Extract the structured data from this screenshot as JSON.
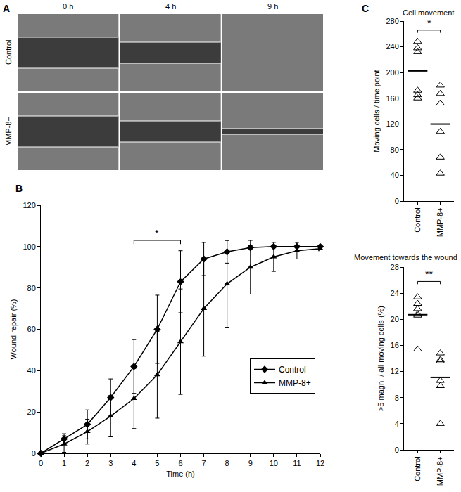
{
  "panel_a": {
    "label": "A",
    "columns": [
      "0 h",
      "4 h",
      "9 h"
    ],
    "rows": [
      "Control",
      "MMP-8+"
    ]
  },
  "chart_data": [
    {
      "label": "B",
      "type": "line",
      "x": [
        0,
        1,
        2,
        3,
        4,
        5,
        6,
        7,
        8,
        9,
        10,
        11,
        12
      ],
      "series": [
        {
          "name": "Control",
          "color": "#000000",
          "marker": "diamond",
          "values": [
            0,
            7,
            14,
            27,
            42,
            60,
            83,
            94,
            97.5,
            99.5,
            100,
            100,
            100
          ],
          "error": [
            0,
            2.5,
            7,
            9,
            13,
            16.5,
            15,
            8,
            5.5,
            1,
            0,
            0,
            0
          ]
        },
        {
          "name": "MMP-8+",
          "color": "#000000",
          "marker": "triangle-up",
          "values": [
            0,
            4.5,
            10.5,
            18,
            26.5,
            38,
            54,
            70,
            82,
            90,
            95,
            98,
            99
          ],
          "error": [
            0,
            4,
            6,
            10,
            14.5,
            21,
            25.5,
            23,
            21,
            13,
            7,
            4,
            1
          ]
        }
      ],
      "x_label": "Time (h)",
      "y_label": "Wound repair (%)",
      "xlim": [
        0,
        12
      ],
      "xticks": [
        0,
        1,
        2,
        3,
        4,
        5,
        6,
        7,
        8,
        9,
        10,
        11,
        12
      ],
      "ylim": [
        0,
        120
      ],
      "yticks": [
        0,
        20,
        40,
        60,
        80,
        100,
        120
      ],
      "legend": "bottom right",
      "significance": [
        {
          "from": 4,
          "to": 6,
          "y": 103,
          "text": "*"
        }
      ]
    },
    {
      "label": "C",
      "type": "scatter",
      "title": "Cell movement",
      "categories": [
        "Control",
        "MMP-8+"
      ],
      "points": [
        [
          248,
          238,
          232,
          172,
          165,
          160
        ],
        [
          180,
          167,
          152,
          108,
          68,
          43
        ]
      ],
      "means": [
        202.5,
        119.7
      ],
      "color": "#000000",
      "marker": "triangle-up-open",
      "y_label": "Moving cells / time point",
      "ylim": [
        0,
        280
      ],
      "yticks": [
        0,
        40,
        80,
        120,
        160,
        200,
        240,
        280
      ],
      "significance": [
        {
          "from": "Control",
          "to": "MMP-8+",
          "y": 266,
          "text": "*"
        }
      ]
    },
    {
      "type": "scatter",
      "title": "Movement towards the wound",
      "categories": [
        "Control",
        "MMP-8+"
      ],
      "points": [
        [
          23.4,
          22.4,
          21.6,
          20.8,
          20.6,
          15.4
        ],
        [
          14.8,
          13.8,
          13.6,
          10.6,
          9.8,
          4.0
        ]
      ],
      "means": [
        20.7,
        11.1
      ],
      "color": "#000000",
      "marker": "triangle-up-open",
      "y_label": ">5 magn. / all moving cells (%)",
      "ylim": [
        0,
        28
      ],
      "yticks": [
        0,
        4,
        8,
        12,
        16,
        20,
        24,
        28
      ],
      "significance": [
        {
          "from": "Control",
          "to": "MMP-8+",
          "y": 25.8,
          "text": "**"
        }
      ]
    }
  ]
}
